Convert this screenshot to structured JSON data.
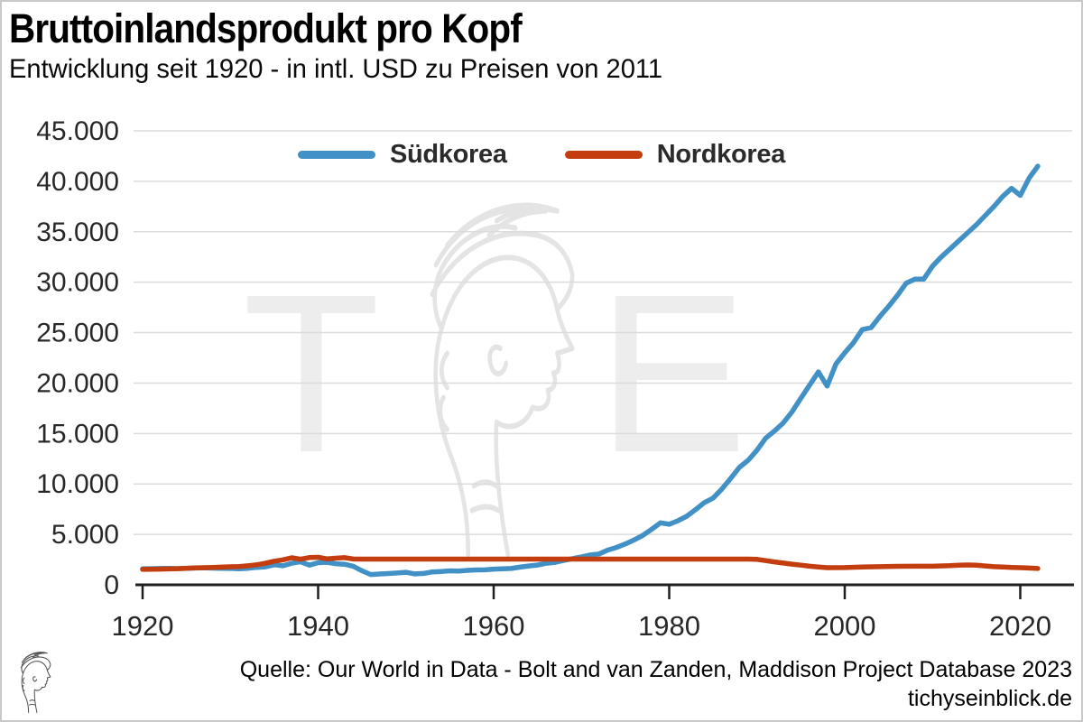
{
  "header": {
    "title": "Bruttoinlandsprodukt pro Kopf",
    "subtitle": "Entwicklung seit 1920 - in intl. USD zu Preisen von 2011"
  },
  "watermark": {
    "left_letter": "T",
    "right_letter": "E",
    "icon": "mercury-head-watermark"
  },
  "footer": {
    "source": "Quelle: Our World in Data - Bolt and van Zanden, Maddison Project Database 2023",
    "site": "tichyseinblick.de",
    "logo_icon": "mercury-head-logo"
  },
  "colors": {
    "suedkorea": "#4191c6",
    "nordkorea": "#c33d0e",
    "gridline": "#dcdcdc",
    "axis": "#1f1f1f",
    "tick_label": "#282828",
    "frame": "#c9c9c9"
  },
  "chart_data": {
    "type": "line",
    "title": "Bruttoinlandsprodukt pro Kopf",
    "subtitle": "Entwicklung seit 1920 - in intl. USD zu Preisen von 2011",
    "xlabel": "",
    "ylabel": "intl. USD zu Preisen von 2011",
    "xlim": [
      1920,
      2022
    ],
    "ylim": [
      0,
      45000
    ],
    "grid": "horizontal",
    "x_ticks": [
      1920,
      1940,
      1960,
      1980,
      2000,
      2020
    ],
    "x_tick_labels": [
      "1920",
      "1940",
      "1960",
      "1980",
      "2000",
      "2020"
    ],
    "y_ticks": [
      0,
      5000,
      10000,
      15000,
      20000,
      25000,
      30000,
      35000,
      40000,
      45000
    ],
    "y_tick_labels": [
      "0",
      "5.000",
      "10.000",
      "15.000",
      "20.000",
      "25.000",
      "30.000",
      "35.000",
      "40.000",
      "45.000"
    ],
    "legend": {
      "position": "top-center",
      "entries": [
        {
          "label": "Südkorea",
          "color": "#4191c6"
        },
        {
          "label": "Nordkorea",
          "color": "#c33d0e"
        }
      ]
    },
    "series": [
      {
        "name": "Südkorea",
        "color": "#4191c6",
        "points": [
          [
            1920,
            1580
          ],
          [
            1921,
            1600
          ],
          [
            1922,
            1615
          ],
          [
            1923,
            1635
          ],
          [
            1924,
            1610
          ],
          [
            1925,
            1640
          ],
          [
            1926,
            1665
          ],
          [
            1927,
            1695
          ],
          [
            1928,
            1655
          ],
          [
            1929,
            1625
          ],
          [
            1930,
            1615
          ],
          [
            1931,
            1595
          ],
          [
            1932,
            1640
          ],
          [
            1933,
            1730
          ],
          [
            1934,
            1780
          ],
          [
            1935,
            1990
          ],
          [
            1936,
            1890
          ],
          [
            1937,
            2140
          ],
          [
            1938,
            2290
          ],
          [
            1939,
            1950
          ],
          [
            1940,
            2190
          ],
          [
            1941,
            2240
          ],
          [
            1942,
            2090
          ],
          [
            1943,
            2040
          ],
          [
            1944,
            1840
          ],
          [
            1945,
            1390
          ],
          [
            1946,
            1020
          ],
          [
            1947,
            1075
          ],
          [
            1948,
            1115
          ],
          [
            1949,
            1175
          ],
          [
            1950,
            1245
          ],
          [
            1951,
            1085
          ],
          [
            1952,
            1125
          ],
          [
            1953,
            1275
          ],
          [
            1954,
            1325
          ],
          [
            1955,
            1385
          ],
          [
            1956,
            1365
          ],
          [
            1957,
            1435
          ],
          [
            1958,
            1475
          ],
          [
            1959,
            1485
          ],
          [
            1960,
            1560
          ],
          [
            1961,
            1590
          ],
          [
            1962,
            1620
          ],
          [
            1963,
            1750
          ],
          [
            1964,
            1870
          ],
          [
            1965,
            1960
          ],
          [
            1966,
            2130
          ],
          [
            1967,
            2230
          ],
          [
            1968,
            2420
          ],
          [
            1969,
            2600
          ],
          [
            1970,
            2760
          ],
          [
            1971,
            2960
          ],
          [
            1972,
            3060
          ],
          [
            1973,
            3440
          ],
          [
            1974,
            3700
          ],
          [
            1975,
            4050
          ],
          [
            1976,
            4450
          ],
          [
            1977,
            4900
          ],
          [
            1978,
            5500
          ],
          [
            1979,
            6150
          ],
          [
            1980,
            6000
          ],
          [
            1981,
            6350
          ],
          [
            1982,
            6800
          ],
          [
            1983,
            7450
          ],
          [
            1984,
            8150
          ],
          [
            1985,
            8600
          ],
          [
            1986,
            9500
          ],
          [
            1987,
            10550
          ],
          [
            1988,
            11650
          ],
          [
            1989,
            12350
          ],
          [
            1990,
            13350
          ],
          [
            1991,
            14550
          ],
          [
            1992,
            15250
          ],
          [
            1993,
            16050
          ],
          [
            1994,
            17150
          ],
          [
            1995,
            18500
          ],
          [
            1996,
            19800
          ],
          [
            1997,
            21100
          ],
          [
            1998,
            19700
          ],
          [
            1999,
            21900
          ],
          [
            2000,
            23000
          ],
          [
            2001,
            24000
          ],
          [
            2002,
            25300
          ],
          [
            2003,
            25500
          ],
          [
            2004,
            26600
          ],
          [
            2005,
            27600
          ],
          [
            2006,
            28700
          ],
          [
            2007,
            29900
          ],
          [
            2008,
            30300
          ],
          [
            2009,
            30300
          ],
          [
            2010,
            31600
          ],
          [
            2011,
            32500
          ],
          [
            2012,
            33300
          ],
          [
            2013,
            34100
          ],
          [
            2014,
            34900
          ],
          [
            2015,
            35700
          ],
          [
            2016,
            36600
          ],
          [
            2017,
            37500
          ],
          [
            2018,
            38500
          ],
          [
            2019,
            39300
          ],
          [
            2020,
            38600
          ],
          [
            2021,
            40300
          ],
          [
            2022,
            41500
          ]
        ]
      },
      {
        "name": "Nordkorea",
        "color": "#c33d0e",
        "points": [
          [
            1920,
            1530
          ],
          [
            1922,
            1560
          ],
          [
            1924,
            1600
          ],
          [
            1926,
            1670
          ],
          [
            1928,
            1730
          ],
          [
            1930,
            1790
          ],
          [
            1931,
            1820
          ],
          [
            1932,
            1890
          ],
          [
            1933,
            1990
          ],
          [
            1934,
            2140
          ],
          [
            1935,
            2340
          ],
          [
            1936,
            2480
          ],
          [
            1937,
            2680
          ],
          [
            1938,
            2540
          ],
          [
            1939,
            2700
          ],
          [
            1940,
            2730
          ],
          [
            1941,
            2580
          ],
          [
            1942,
            2640
          ],
          [
            1943,
            2690
          ],
          [
            1944,
            2560
          ],
          [
            1945,
            2550
          ],
          [
            1950,
            2550
          ],
          [
            1960,
            2550
          ],
          [
            1970,
            2550
          ],
          [
            1980,
            2550
          ],
          [
            1989,
            2550
          ],
          [
            1990,
            2520
          ],
          [
            1991,
            2400
          ],
          [
            1992,
            2270
          ],
          [
            1993,
            2160
          ],
          [
            1994,
            2050
          ],
          [
            1995,
            1950
          ],
          [
            1996,
            1840
          ],
          [
            1997,
            1760
          ],
          [
            1998,
            1700
          ],
          [
            2000,
            1710
          ],
          [
            2002,
            1760
          ],
          [
            2004,
            1800
          ],
          [
            2006,
            1830
          ],
          [
            2008,
            1840
          ],
          [
            2010,
            1840
          ],
          [
            2012,
            1900
          ],
          [
            2013,
            1950
          ],
          [
            2014,
            1970
          ],
          [
            2015,
            1940
          ],
          [
            2016,
            1870
          ],
          [
            2017,
            1800
          ],
          [
            2018,
            1760
          ],
          [
            2019,
            1730
          ],
          [
            2020,
            1700
          ],
          [
            2021,
            1660
          ],
          [
            2022,
            1620
          ]
        ]
      }
    ]
  }
}
